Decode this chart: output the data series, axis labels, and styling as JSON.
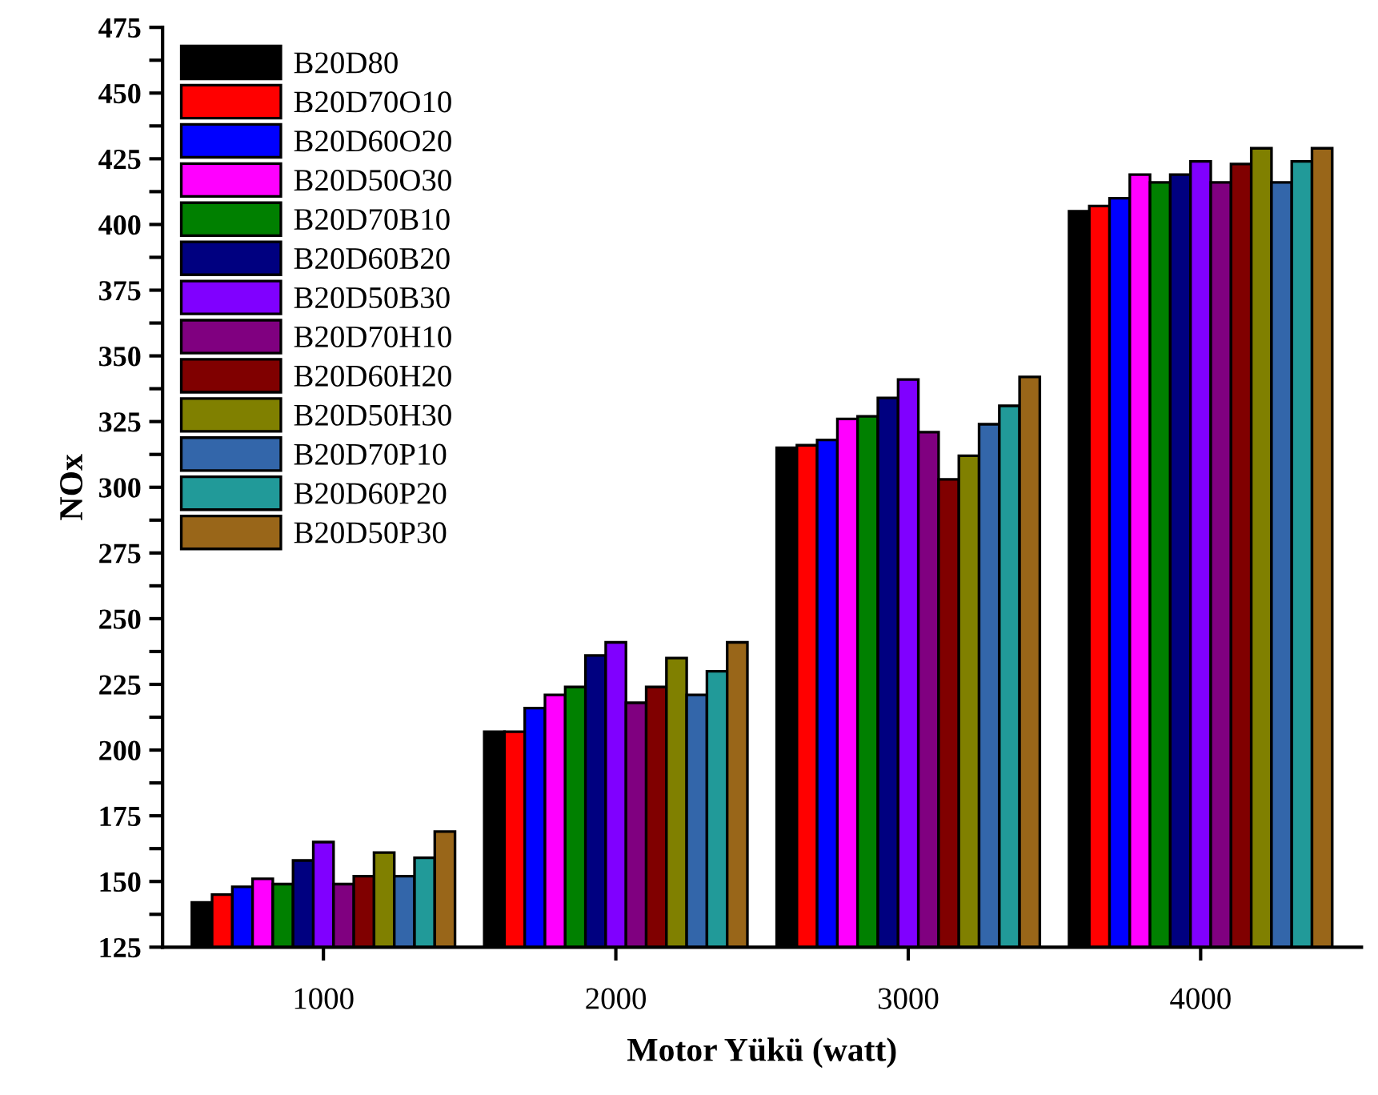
{
  "chart_data": {
    "type": "bar",
    "xlabel": "Motor Yükü (watt)",
    "ylabel": "NOx",
    "categories": [
      "1000",
      "2000",
      "3000",
      "4000"
    ],
    "ylim": [
      125,
      475
    ],
    "yticks": [
      125,
      {
        "value": 137.5,
        "label": null
      },
      150,
      {
        "value": 162.5,
        "label": null
      },
      175,
      {
        "value": 187.5,
        "label": null
      },
      200,
      {
        "value": 212.5,
        "label": null
      },
      225,
      {
        "value": 237.5,
        "label": null
      },
      250,
      {
        "value": 262.5,
        "label": null
      },
      275,
      {
        "value": 287.5,
        "label": null
      },
      300,
      {
        "value": 312.5,
        "label": null
      },
      325,
      {
        "value": 337.5,
        "label": null
      },
      350,
      {
        "value": 362.5,
        "label": null
      },
      375,
      {
        "value": 387.5,
        "label": null
      },
      400,
      {
        "value": 412.5,
        "label": null
      },
      425,
      {
        "value": 437.5,
        "label": null
      },
      450,
      {
        "value": 462.5,
        "label": null
      },
      475
    ],
    "grid": false,
    "legend": "top left",
    "series": [
      {
        "name": "B20D80",
        "color": "#000000",
        "values": [
          142,
          207,
          315,
          405
        ]
      },
      {
        "name": "B20D70O10",
        "color": "#ff0000",
        "values": [
          145,
          207,
          316,
          407
        ]
      },
      {
        "name": "B20D60O20",
        "color": "#0000ff",
        "values": [
          148,
          216,
          318,
          410
        ]
      },
      {
        "name": "B20D50O30",
        "color": "#ff00ff",
        "values": [
          151,
          221,
          326,
          419
        ]
      },
      {
        "name": "B20D70B10",
        "color": "#008000",
        "values": [
          149,
          224,
          327,
          416
        ]
      },
      {
        "name": "B20D60B20",
        "color": "#000080",
        "values": [
          158,
          236,
          334,
          419
        ]
      },
      {
        "name": "B20D50B30",
        "color": "#8000ff",
        "values": [
          165,
          241,
          341,
          424
        ]
      },
      {
        "name": "B20D70H10",
        "color": "#800080",
        "values": [
          149,
          218,
          321,
          416
        ]
      },
      {
        "name": "B20D60H20",
        "color": "#800000",
        "values": [
          152,
          224,
          303,
          423
        ]
      },
      {
        "name": "B20D50H30",
        "color": "#808000",
        "values": [
          161,
          235,
          312,
          429
        ]
      },
      {
        "name": "B20D70P10",
        "color": "#3366aa",
        "values": [
          152,
          221,
          324,
          416
        ]
      },
      {
        "name": "B20D60P20",
        "color": "#219a99",
        "values": [
          159,
          230,
          331,
          424
        ]
      },
      {
        "name": "B20D50P30",
        "color": "#996619",
        "values": [
          169,
          241,
          342,
          429
        ]
      }
    ]
  }
}
